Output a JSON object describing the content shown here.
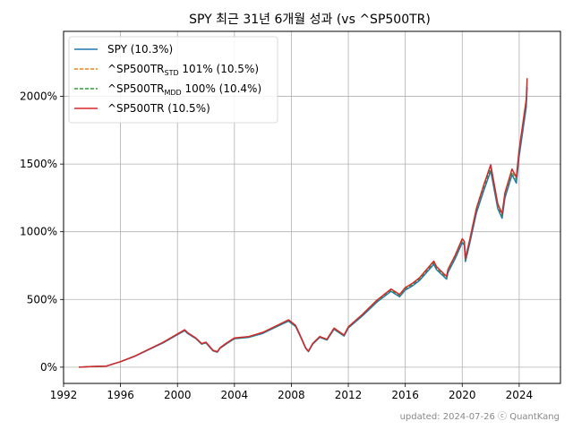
{
  "chart_data": {
    "type": "line",
    "title": "SPY 최근 31년 6개월 성과 (vs ^SP500TR)",
    "xlabel": "",
    "ylabel": "",
    "xlim": [
      1992.0,
      2026.9
    ],
    "ylim": [
      -120,
      2480
    ],
    "x_ticks": [
      {
        "v": 1992,
        "label": "1992"
      },
      {
        "v": 1996,
        "label": "1996"
      },
      {
        "v": 2000,
        "label": "2000"
      },
      {
        "v": 2004,
        "label": "2004"
      },
      {
        "v": 2008,
        "label": "2008"
      },
      {
        "v": 2012,
        "label": "2012"
      },
      {
        "v": 2016,
        "label": "2016"
      },
      {
        "v": 2020,
        "label": "2020"
      },
      {
        "v": 2024,
        "label": "2024"
      }
    ],
    "y_ticks": [
      {
        "v": 0,
        "label": "0%"
      },
      {
        "v": 500,
        "label": "500%"
      },
      {
        "v": 1000,
        "label": "1000%"
      },
      {
        "v": 1500,
        "label": "1500%"
      },
      {
        "v": 2000,
        "label": "2000%"
      }
    ],
    "grid": true,
    "legend_position": "top-left",
    "x": [
      1993.08,
      1994.0,
      1995.0,
      1996.0,
      1997.0,
      1998.0,
      1999.0,
      2000.0,
      2000.5,
      2000.7,
      2001.3,
      2001.7,
      2002.0,
      2002.5,
      2002.8,
      2003.0,
      2003.4,
      2004.0,
      2005.0,
      2006.0,
      2007.0,
      2007.8,
      2008.3,
      2008.7,
      2009.0,
      2009.2,
      2009.5,
      2010.0,
      2010.5,
      2011.0,
      2011.7,
      2012.0,
      2013.0,
      2014.0,
      2015.0,
      2015.6,
      2016.0,
      2016.5,
      2017.0,
      2018.0,
      2018.2,
      2018.9,
      2019.0,
      2019.5,
      2020.0,
      2020.15,
      2020.22,
      2020.5,
      2021.0,
      2021.5,
      2022.0,
      2022.5,
      2022.8,
      2023.0,
      2023.5,
      2023.8,
      2024.0,
      2024.5,
      2024.56
    ],
    "series": [
      {
        "name": "SPY (10.3%)",
        "color": "#1f77b4",
        "style": "solid",
        "values": [
          0,
          5,
          8,
          40,
          80,
          130,
          180,
          240,
          270,
          250,
          210,
          170,
          180,
          120,
          110,
          140,
          170,
          210,
          220,
          250,
          300,
          340,
          300,
          210,
          140,
          115,
          170,
          220,
          200,
          280,
          230,
          290,
          380,
          480,
          560,
          520,
          570,
          600,
          640,
          760,
          720,
          650,
          700,
          800,
          920,
          900,
          780,
          900,
          1140,
          1300,
          1450,
          1170,
          1100,
          1250,
          1420,
          1360,
          1560,
          1920,
          2070
        ]
      },
      {
        "name": "^SP500TR",
        "sub": "STD",
        "suffix": " 101% (10.5%)",
        "color": "#ff7f0e",
        "style": "dashed",
        "values": [
          0,
          5,
          8,
          41,
          82,
          133,
          184,
          245,
          276,
          256,
          215,
          174,
          185,
          124,
          114,
          144,
          175,
          216,
          226,
          257,
          308,
          350,
          309,
          216,
          144,
          118,
          175,
          226,
          206,
          288,
          237,
          298,
          391,
          494,
          577,
          536,
          588,
          618,
          660,
          783,
          742,
          670,
          722,
          825,
          948,
          928,
          804,
          928,
          1175,
          1340,
          1494,
          1206,
          1134,
          1288,
          1463,
          1402,
          1608,
          1978,
          2134
        ]
      },
      {
        "name": "^SP500TR",
        "sub": "MDD",
        "suffix": " 100% (10.4%)",
        "color": "#2ca02c",
        "style": "dashed",
        "values": [
          0,
          5,
          8,
          40,
          81,
          132,
          182,
          243,
          273,
          253,
          212,
          172,
          182,
          122,
          112,
          142,
          172,
          213,
          223,
          253,
          304,
          345,
          304,
          213,
          142,
          116,
          172,
          223,
          203,
          284,
          233,
          294,
          386,
          487,
          568,
          528,
          579,
          609,
          650,
          771,
          731,
          660,
          711,
          812,
          934,
          914,
          792,
          914,
          1157,
          1320,
          1472,
          1188,
          1117,
          1269,
          1441,
          1381,
          1584,
          1949,
          2101
        ]
      },
      {
        "name": "^SP500TR (10.5%)",
        "color": "#d62728",
        "style": "solid",
        "values": [
          0,
          5,
          8,
          41,
          82,
          133,
          184,
          245,
          276,
          256,
          215,
          174,
          185,
          124,
          114,
          144,
          175,
          216,
          226,
          257,
          308,
          350,
          309,
          216,
          144,
          118,
          175,
          226,
          206,
          288,
          237,
          298,
          391,
          494,
          577,
          536,
          588,
          618,
          660,
          783,
          742,
          670,
          722,
          825,
          948,
          928,
          804,
          928,
          1175,
          1340,
          1494,
          1206,
          1134,
          1288,
          1463,
          1402,
          1608,
          1978,
          2134
        ]
      }
    ],
    "annotation": "updated: 2024-07-26 ⓒ QuantKang"
  }
}
